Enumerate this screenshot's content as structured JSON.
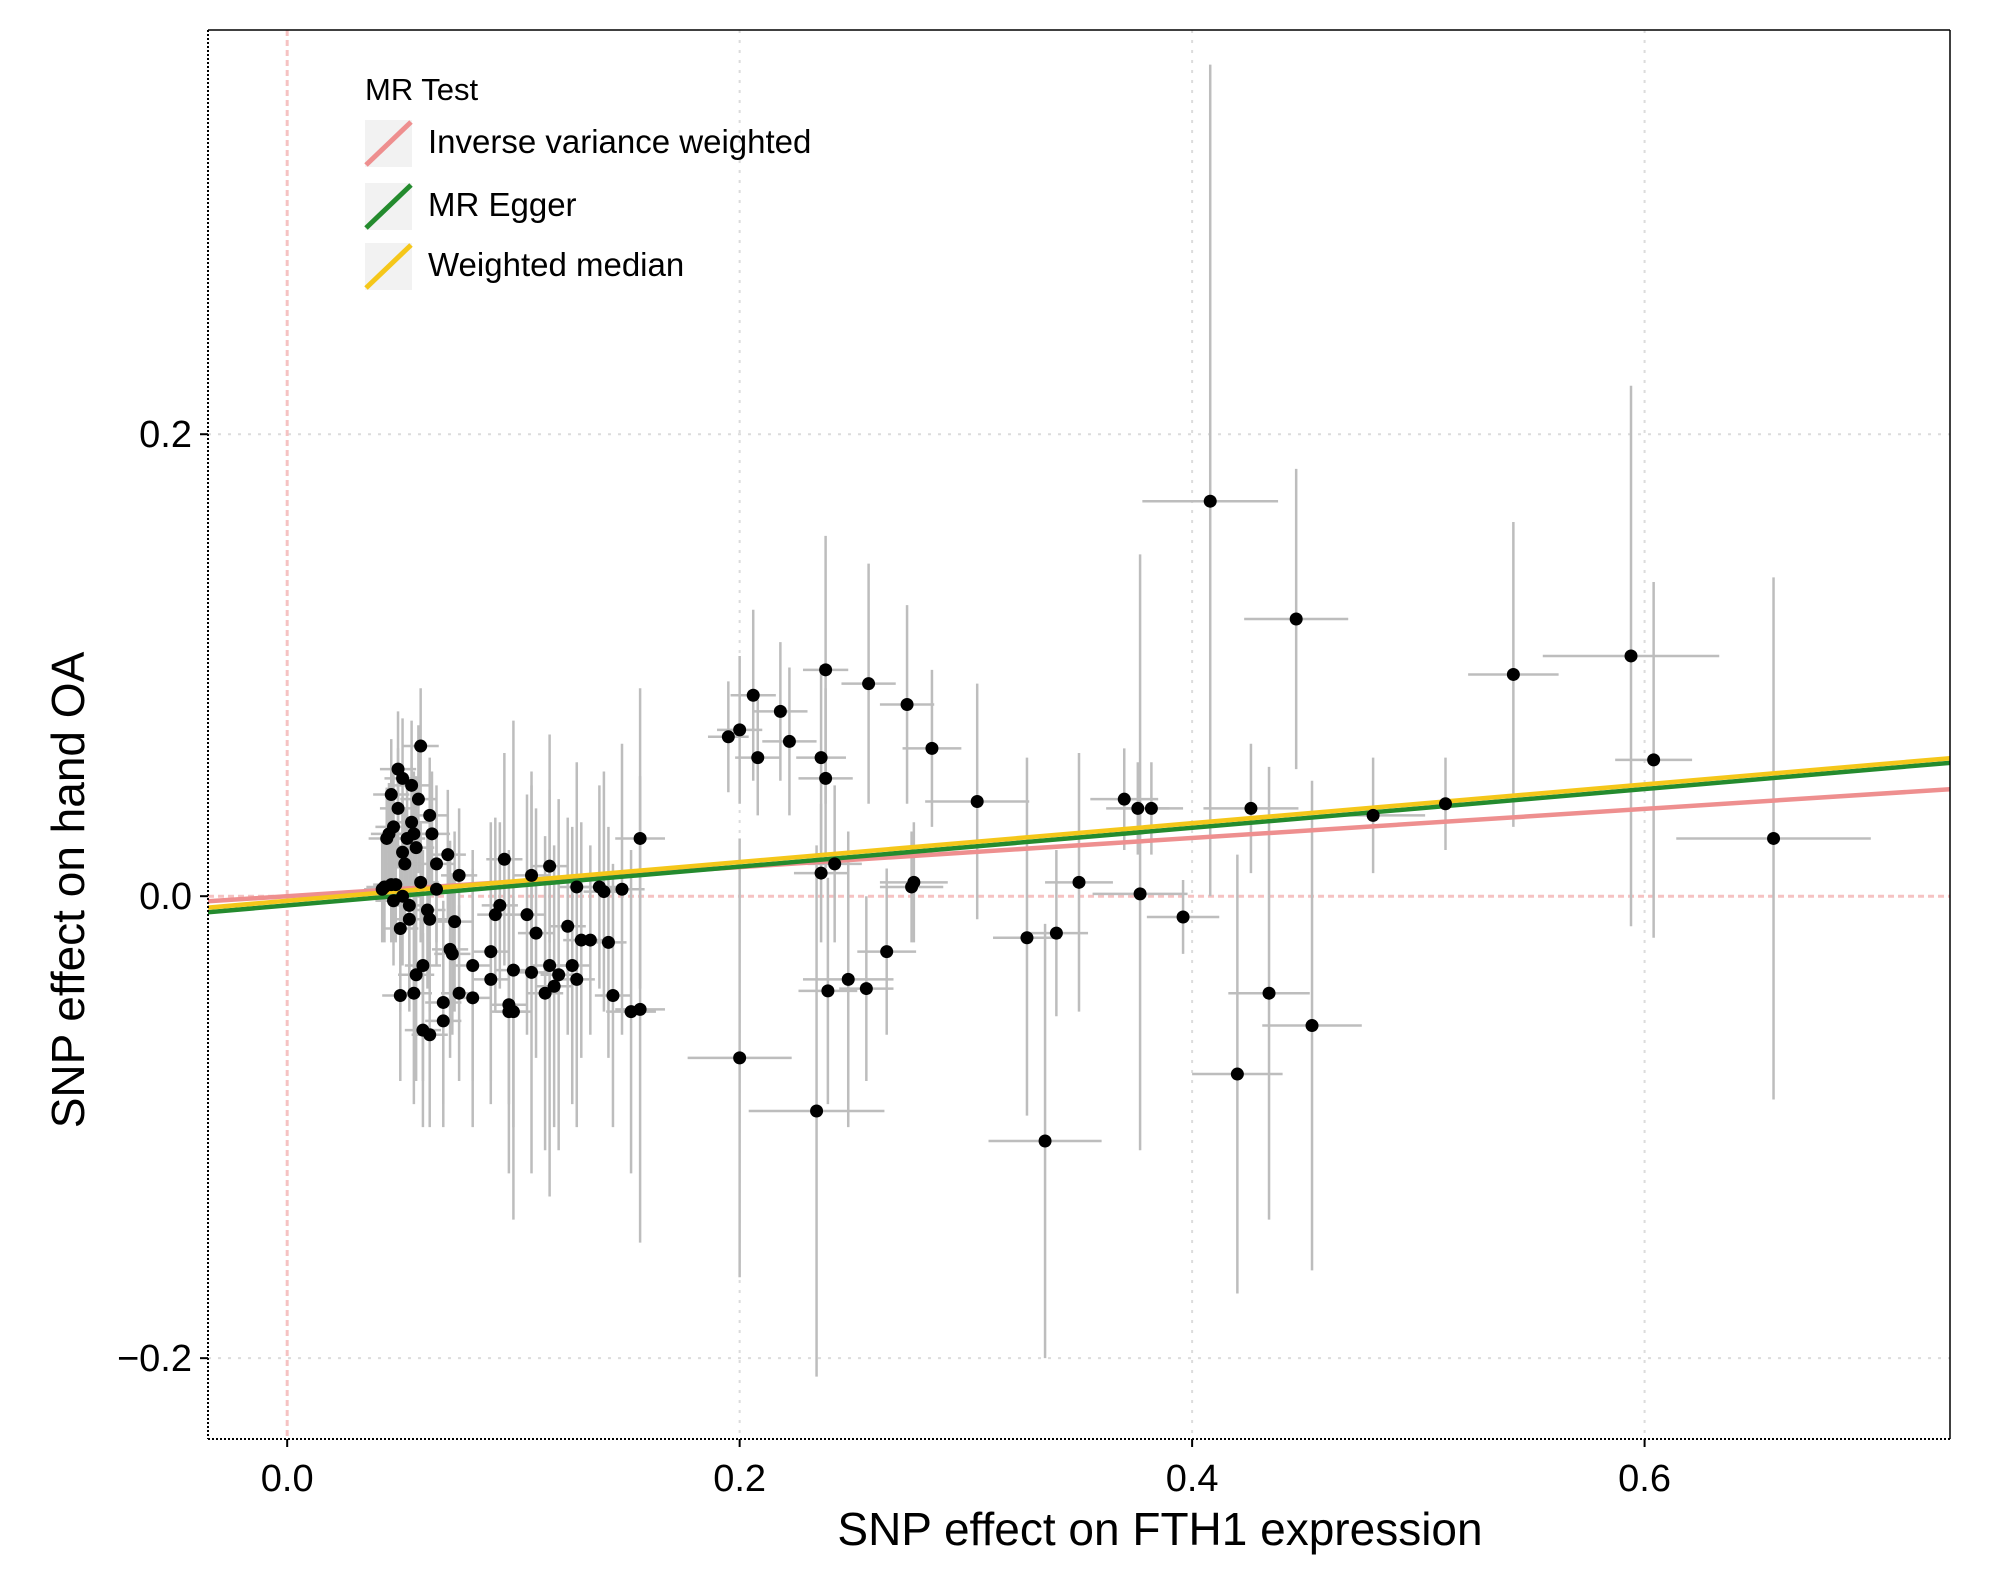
{
  "chart_data": {
    "type": "scatter",
    "title": "",
    "xlabel": "SNP effect on FTH1 expression",
    "ylabel": "SNP effect on hand OA",
    "xlim": [
      -0.035,
      0.735
    ],
    "ylim": [
      -0.235,
      0.375
    ],
    "x_ticks": [
      0.0,
      0.2,
      0.4,
      0.6
    ],
    "x_tick_labels": [
      "0.0",
      "0.2",
      "0.4",
      "0.6"
    ],
    "y_ticks": [
      -0.2,
      0.0,
      0.2
    ],
    "y_tick_labels": [
      "−0.2",
      "0.0",
      "0.2"
    ],
    "grid": true,
    "reference_lines": {
      "x": 0,
      "y": 0,
      "color": "#f6c2c2"
    },
    "errorbar_color": "#bdbdbd",
    "point_color": "#000000",
    "legend": {
      "title": "MR Test",
      "placement": "top-left",
      "entries": [
        {
          "label": "Inverse variance weighted",
          "color": "#ee8f8f"
        },
        {
          "label": "MR Egger",
          "color": "#248b2e"
        },
        {
          "label": "Weighted median",
          "color": "#f5c71a"
        }
      ]
    },
    "lines": [
      {
        "name": "Inverse variance weighted",
        "color": "#ee8f8f",
        "intercept": 0.0,
        "slope": 0.063
      },
      {
        "name": "MR Egger",
        "color": "#248b2e",
        "intercept": -0.004,
        "slope": 0.084
      },
      {
        "name": "Weighted median",
        "color": "#f5c71a",
        "intercept": -0.002,
        "slope": 0.084
      }
    ],
    "points": [
      {
        "x": 0.408,
        "y": 0.171,
        "xlo": 0.378,
        "xhi": 0.438,
        "ylo": 0.0,
        "yhi": 0.36
      },
      {
        "x": 0.446,
        "y": 0.12,
        "xlo": 0.423,
        "xhi": 0.469,
        "ylo": 0.055,
        "yhi": 0.185
      },
      {
        "x": 0.594,
        "y": 0.104,
        "xlo": 0.555,
        "xhi": 0.633,
        "ylo": -0.013,
        "yhi": 0.221
      },
      {
        "x": 0.542,
        "y": 0.096,
        "xlo": 0.522,
        "xhi": 0.562,
        "ylo": 0.03,
        "yhi": 0.162
      },
      {
        "x": 0.604,
        "y": 0.059,
        "xlo": 0.587,
        "xhi": 0.621,
        "ylo": -0.018,
        "yhi": 0.136
      },
      {
        "x": 0.657,
        "y": 0.025,
        "xlo": 0.614,
        "xhi": 0.7,
        "ylo": -0.088,
        "yhi": 0.138
      },
      {
        "x": 0.48,
        "y": 0.035,
        "xlo": 0.457,
        "xhi": 0.503,
        "ylo": 0.01,
        "yhi": 0.06
      },
      {
        "x": 0.512,
        "y": 0.04,
        "xlo": 0.497,
        "xhi": 0.527,
        "ylo": 0.02,
        "yhi": 0.06
      },
      {
        "x": 0.426,
        "y": 0.038,
        "xlo": 0.405,
        "xhi": 0.447,
        "ylo": 0.01,
        "yhi": 0.066
      },
      {
        "x": 0.37,
        "y": 0.042,
        "xlo": 0.355,
        "xhi": 0.385,
        "ylo": 0.02,
        "yhi": 0.064
      },
      {
        "x": 0.376,
        "y": 0.038,
        "xlo": 0.362,
        "xhi": 0.39,
        "ylo": 0.018,
        "yhi": 0.058
      },
      {
        "x": 0.382,
        "y": 0.038,
        "xlo": 0.368,
        "xhi": 0.396,
        "ylo": 0.018,
        "yhi": 0.058
      },
      {
        "x": 0.377,
        "y": 0.001,
        "xlo": 0.356,
        "xhi": 0.398,
        "ylo": -0.11,
        "yhi": 0.148
      },
      {
        "x": 0.396,
        "y": -0.009,
        "xlo": 0.38,
        "xhi": 0.412,
        "ylo": -0.025,
        "yhi": 0.007
      },
      {
        "x": 0.434,
        "y": -0.042,
        "xlo": 0.416,
        "xhi": 0.452,
        "ylo": -0.14,
        "yhi": 0.056
      },
      {
        "x": 0.453,
        "y": -0.056,
        "xlo": 0.431,
        "xhi": 0.475,
        "ylo": -0.162,
        "yhi": 0.05
      },
      {
        "x": 0.42,
        "y": -0.077,
        "xlo": 0.4,
        "xhi": 0.44,
        "ylo": -0.172,
        "yhi": 0.018
      },
      {
        "x": 0.335,
        "y": -0.106,
        "xlo": 0.31,
        "xhi": 0.36,
        "ylo": -0.2,
        "yhi": -0.012
      },
      {
        "x": 0.35,
        "y": 0.006,
        "xlo": 0.335,
        "xhi": 0.365,
        "ylo": -0.05,
        "yhi": 0.062
      },
      {
        "x": 0.327,
        "y": -0.018,
        "xlo": 0.312,
        "xhi": 0.342,
        "ylo": -0.095,
        "yhi": 0.06
      },
      {
        "x": 0.34,
        "y": -0.016,
        "xlo": 0.326,
        "xhi": 0.354,
        "ylo": -0.052,
        "yhi": 0.02
      },
      {
        "x": 0.305,
        "y": 0.041,
        "xlo": 0.282,
        "xhi": 0.328,
        "ylo": -0.01,
        "yhi": 0.092
      },
      {
        "x": 0.285,
        "y": 0.064,
        "xlo": 0.272,
        "xhi": 0.298,
        "ylo": 0.03,
        "yhi": 0.098
      },
      {
        "x": 0.274,
        "y": 0.083,
        "xlo": 0.262,
        "xhi": 0.286,
        "ylo": 0.04,
        "yhi": 0.126
      },
      {
        "x": 0.276,
        "y": 0.004,
        "xlo": 0.262,
        "xhi": 0.29,
        "ylo": -0.02,
        "yhi": 0.028
      },
      {
        "x": 0.277,
        "y": 0.006,
        "xlo": 0.262,
        "xhi": 0.292,
        "ylo": -0.02,
        "yhi": 0.032
      },
      {
        "x": 0.257,
        "y": 0.092,
        "xlo": 0.245,
        "xhi": 0.269,
        "ylo": 0.04,
        "yhi": 0.144
      },
      {
        "x": 0.238,
        "y": 0.098,
        "xlo": 0.228,
        "xhi": 0.248,
        "ylo": 0.04,
        "yhi": 0.156
      },
      {
        "x": 0.236,
        "y": 0.06,
        "xlo": 0.225,
        "xhi": 0.247,
        "ylo": 0.02,
        "yhi": 0.1
      },
      {
        "x": 0.238,
        "y": 0.051,
        "xlo": 0.226,
        "xhi": 0.25,
        "ylo": 0.012,
        "yhi": 0.09
      },
      {
        "x": 0.218,
        "y": 0.08,
        "xlo": 0.206,
        "xhi": 0.23,
        "ylo": 0.05,
        "yhi": 0.11
      },
      {
        "x": 0.222,
        "y": 0.067,
        "xlo": 0.21,
        "xhi": 0.234,
        "ylo": 0.035,
        "yhi": 0.099
      },
      {
        "x": 0.206,
        "y": 0.087,
        "xlo": 0.196,
        "xhi": 0.216,
        "ylo": 0.05,
        "yhi": 0.124
      },
      {
        "x": 0.2,
        "y": 0.072,
        "xlo": 0.19,
        "xhi": 0.21,
        "ylo": 0.04,
        "yhi": 0.104
      },
      {
        "x": 0.195,
        "y": 0.069,
        "xlo": 0.186,
        "xhi": 0.204,
        "ylo": 0.045,
        "yhi": 0.093
      },
      {
        "x": 0.208,
        "y": 0.06,
        "xlo": 0.198,
        "xhi": 0.218,
        "ylo": 0.035,
        "yhi": 0.085
      },
      {
        "x": 0.242,
        "y": 0.014,
        "xlo": 0.23,
        "xhi": 0.254,
        "ylo": -0.02,
        "yhi": 0.048
      },
      {
        "x": 0.236,
        "y": 0.01,
        "xlo": 0.224,
        "xhi": 0.248,
        "ylo": -0.02,
        "yhi": 0.04
      },
      {
        "x": 0.265,
        "y": -0.024,
        "xlo": 0.252,
        "xhi": 0.278,
        "ylo": -0.06,
        "yhi": 0.012
      },
      {
        "x": 0.248,
        "y": -0.036,
        "xlo": 0.228,
        "xhi": 0.268,
        "ylo": -0.1,
        "yhi": 0.028
      },
      {
        "x": 0.239,
        "y": -0.041,
        "xlo": 0.226,
        "xhi": 0.252,
        "ylo": -0.09,
        "yhi": 0.008
      },
      {
        "x": 0.256,
        "y": -0.04,
        "xlo": 0.244,
        "xhi": 0.268,
        "ylo": -0.08,
        "yhi": 0.0
      },
      {
        "x": 0.2,
        "y": -0.07,
        "xlo": 0.177,
        "xhi": 0.223,
        "ylo": -0.165,
        "yhi": 0.025
      },
      {
        "x": 0.234,
        "y": -0.093,
        "xlo": 0.204,
        "xhi": 0.264,
        "ylo": -0.208,
        "yhi": 0.022
      },
      {
        "x": 0.156,
        "y": 0.025,
        "xlo": 0.145,
        "xhi": 0.167,
        "ylo": -0.04,
        "yhi": 0.09
      },
      {
        "x": 0.148,
        "y": 0.003,
        "xlo": 0.138,
        "xhi": 0.158,
        "ylo": -0.06,
        "yhi": 0.066
      },
      {
        "x": 0.152,
        "y": -0.05,
        "xlo": 0.141,
        "xhi": 0.163,
        "ylo": -0.12,
        "yhi": 0.02
      },
      {
        "x": 0.156,
        "y": -0.049,
        "xlo": 0.145,
        "xhi": 0.167,
        "ylo": -0.15,
        "yhi": 0.052
      },
      {
        "x": 0.14,
        "y": 0.002,
        "xlo": 0.131,
        "xhi": 0.149,
        "ylo": -0.05,
        "yhi": 0.054
      },
      {
        "x": 0.138,
        "y": 0.004,
        "xlo": 0.13,
        "xhi": 0.146,
        "ylo": -0.04,
        "yhi": 0.048
      },
      {
        "x": 0.142,
        "y": -0.02,
        "xlo": 0.134,
        "xhi": 0.15,
        "ylo": -0.07,
        "yhi": 0.03
      },
      {
        "x": 0.144,
        "y": -0.043,
        "xlo": 0.136,
        "xhi": 0.152,
        "ylo": -0.1,
        "yhi": 0.014
      },
      {
        "x": 0.128,
        "y": 0.004,
        "xlo": 0.12,
        "xhi": 0.136,
        "ylo": -0.05,
        "yhi": 0.058
      },
      {
        "x": 0.13,
        "y": -0.019,
        "xlo": 0.122,
        "xhi": 0.138,
        "ylo": -0.07,
        "yhi": 0.032
      },
      {
        "x": 0.134,
        "y": -0.019,
        "xlo": 0.126,
        "xhi": 0.142,
        "ylo": -0.06,
        "yhi": 0.022
      },
      {
        "x": 0.124,
        "y": -0.013,
        "xlo": 0.116,
        "xhi": 0.132,
        "ylo": -0.06,
        "yhi": 0.034
      },
      {
        "x": 0.126,
        "y": -0.03,
        "xlo": 0.118,
        "xhi": 0.134,
        "ylo": -0.09,
        "yhi": 0.03
      },
      {
        "x": 0.128,
        "y": -0.036,
        "xlo": 0.12,
        "xhi": 0.136,
        "ylo": -0.1,
        "yhi": 0.028
      },
      {
        "x": 0.12,
        "y": -0.034,
        "xlo": 0.112,
        "xhi": 0.128,
        "ylo": -0.11,
        "yhi": 0.042
      },
      {
        "x": 0.116,
        "y": -0.03,
        "xlo": 0.108,
        "xhi": 0.124,
        "ylo": -0.13,
        "yhi": 0.07
      },
      {
        "x": 0.118,
        "y": -0.039,
        "xlo": 0.11,
        "xhi": 0.126,
        "ylo": -0.1,
        "yhi": 0.022
      },
      {
        "x": 0.114,
        "y": -0.042,
        "xlo": 0.106,
        "xhi": 0.122,
        "ylo": -0.11,
        "yhi": 0.026
      },
      {
        "x": 0.11,
        "y": -0.016,
        "xlo": 0.102,
        "xhi": 0.118,
        "ylo": -0.07,
        "yhi": 0.038
      },
      {
        "x": 0.108,
        "y": 0.009,
        "xlo": 0.1,
        "xhi": 0.116,
        "ylo": -0.03,
        "yhi": 0.048
      },
      {
        "x": 0.116,
        "y": 0.013,
        "xlo": 0.108,
        "xhi": 0.124,
        "ylo": -0.02,
        "yhi": 0.046
      },
      {
        "x": 0.106,
        "y": -0.008,
        "xlo": 0.098,
        "xhi": 0.114,
        "ylo": -0.06,
        "yhi": 0.044
      },
      {
        "x": 0.108,
        "y": -0.033,
        "xlo": 0.1,
        "xhi": 0.116,
        "ylo": -0.12,
        "yhi": 0.054
      },
      {
        "x": 0.1,
        "y": -0.032,
        "xlo": 0.092,
        "xhi": 0.108,
        "ylo": -0.14,
        "yhi": 0.076
      },
      {
        "x": 0.098,
        "y": -0.05,
        "xlo": 0.09,
        "xhi": 0.106,
        "ylo": -0.12,
        "yhi": 0.02
      },
      {
        "x": 0.1,
        "y": -0.05,
        "xlo": 0.092,
        "xhi": 0.108,
        "ylo": -0.1,
        "yhi": 0.0
      },
      {
        "x": 0.098,
        "y": -0.047,
        "xlo": 0.09,
        "xhi": 0.106,
        "ylo": -0.09,
        "yhi": -0.004
      },
      {
        "x": 0.096,
        "y": 0.016,
        "xlo": 0.088,
        "xhi": 0.104,
        "ylo": -0.03,
        "yhi": 0.062
      },
      {
        "x": 0.094,
        "y": -0.004,
        "xlo": 0.086,
        "xhi": 0.102,
        "ylo": -0.04,
        "yhi": 0.032
      },
      {
        "x": 0.092,
        "y": -0.008,
        "xlo": 0.084,
        "xhi": 0.1,
        "ylo": -0.05,
        "yhi": 0.034
      },
      {
        "x": 0.09,
        "y": -0.036,
        "xlo": 0.082,
        "xhi": 0.098,
        "ylo": -0.09,
        "yhi": 0.018
      },
      {
        "x": 0.09,
        "y": -0.024,
        "xlo": 0.082,
        "xhi": 0.098,
        "ylo": -0.08,
        "yhi": 0.032
      },
      {
        "x": 0.082,
        "y": -0.03,
        "xlo": 0.074,
        "xhi": 0.09,
        "ylo": -0.08,
        "yhi": 0.02
      },
      {
        "x": 0.082,
        "y": -0.044,
        "xlo": 0.074,
        "xhi": 0.09,
        "ylo": -0.1,
        "yhi": 0.012
      },
      {
        "x": 0.076,
        "y": -0.042,
        "xlo": 0.068,
        "xhi": 0.084,
        "ylo": -0.08,
        "yhi": -0.004
      },
      {
        "x": 0.076,
        "y": 0.009,
        "xlo": 0.068,
        "xhi": 0.084,
        "ylo": -0.02,
        "yhi": 0.038
      },
      {
        "x": 0.073,
        "y": -0.025,
        "xlo": 0.065,
        "xhi": 0.081,
        "ylo": -0.06,
        "yhi": 0.01
      },
      {
        "x": 0.074,
        "y": -0.011,
        "xlo": 0.066,
        "xhi": 0.082,
        "ylo": -0.05,
        "yhi": 0.028
      },
      {
        "x": 0.072,
        "y": -0.023,
        "xlo": 0.064,
        "xhi": 0.08,
        "ylo": -0.07,
        "yhi": 0.024
      },
      {
        "x": 0.071,
        "y": 0.018,
        "xlo": 0.063,
        "xhi": 0.079,
        "ylo": -0.01,
        "yhi": 0.046
      },
      {
        "x": 0.069,
        "y": -0.046,
        "xlo": 0.061,
        "xhi": 0.077,
        "ylo": -0.09,
        "yhi": -0.002
      },
      {
        "x": 0.069,
        "y": -0.054,
        "xlo": 0.061,
        "xhi": 0.077,
        "ylo": -0.1,
        "yhi": -0.008
      },
      {
        "x": 0.066,
        "y": 0.014,
        "xlo": 0.058,
        "xhi": 0.074,
        "ylo": -0.02,
        "yhi": 0.048
      },
      {
        "x": 0.066,
        "y": 0.003,
        "xlo": 0.058,
        "xhi": 0.074,
        "ylo": -0.03,
        "yhi": 0.036
      },
      {
        "x": 0.063,
        "y": 0.035,
        "xlo": 0.055,
        "xhi": 0.071,
        "ylo": 0.01,
        "yhi": 0.06
      },
      {
        "x": 0.064,
        "y": 0.027,
        "xlo": 0.056,
        "xhi": 0.072,
        "ylo": 0.0,
        "yhi": 0.054
      },
      {
        "x": 0.063,
        "y": -0.01,
        "xlo": 0.055,
        "xhi": 0.071,
        "ylo": -0.05,
        "yhi": 0.03
      },
      {
        "x": 0.062,
        "y": -0.006,
        "xlo": 0.054,
        "xhi": 0.07,
        "ylo": -0.04,
        "yhi": 0.028
      },
      {
        "x": 0.063,
        "y": -0.06,
        "xlo": 0.055,
        "xhi": 0.071,
        "ylo": -0.1,
        "yhi": -0.02
      },
      {
        "x": 0.06,
        "y": -0.058,
        "xlo": 0.052,
        "xhi": 0.068,
        "ylo": -0.1,
        "yhi": -0.016
      },
      {
        "x": 0.06,
        "y": -0.03,
        "xlo": 0.052,
        "xhi": 0.068,
        "ylo": -0.08,
        "yhi": 0.02
      },
      {
        "x": 0.059,
        "y": 0.065,
        "xlo": 0.051,
        "xhi": 0.067,
        "ylo": 0.04,
        "yhi": 0.09
      },
      {
        "x": 0.059,
        "y": 0.006,
        "xlo": 0.051,
        "xhi": 0.067,
        "ylo": -0.02,
        "yhi": 0.032
      },
      {
        "x": 0.058,
        "y": 0.042,
        "xlo": 0.05,
        "xhi": 0.066,
        "ylo": 0.01,
        "yhi": 0.074
      },
      {
        "x": 0.057,
        "y": 0.021,
        "xlo": 0.049,
        "xhi": 0.065,
        "ylo": -0.01,
        "yhi": 0.052
      },
      {
        "x": 0.057,
        "y": -0.034,
        "xlo": 0.049,
        "xhi": 0.065,
        "ylo": -0.08,
        "yhi": 0.012
      },
      {
        "x": 0.056,
        "y": -0.042,
        "xlo": 0.048,
        "xhi": 0.064,
        "ylo": -0.09,
        "yhi": 0.006
      },
      {
        "x": 0.056,
        "y": 0.027,
        "xlo": 0.048,
        "xhi": 0.064,
        "ylo": 0.0,
        "yhi": 0.054
      },
      {
        "x": 0.055,
        "y": 0.032,
        "xlo": 0.047,
        "xhi": 0.063,
        "ylo": 0.005,
        "yhi": 0.059
      },
      {
        "x": 0.055,
        "y": 0.048,
        "xlo": 0.047,
        "xhi": 0.063,
        "ylo": 0.02,
        "yhi": 0.076
      },
      {
        "x": 0.054,
        "y": -0.004,
        "xlo": 0.046,
        "xhi": 0.062,
        "ylo": -0.04,
        "yhi": 0.032
      },
      {
        "x": 0.054,
        "y": -0.01,
        "xlo": 0.046,
        "xhi": 0.062,
        "ylo": -0.05,
        "yhi": 0.03
      },
      {
        "x": 0.053,
        "y": 0.025,
        "xlo": 0.045,
        "xhi": 0.061,
        "ylo": 0.0,
        "yhi": 0.05
      },
      {
        "x": 0.052,
        "y": 0.014,
        "xlo": 0.044,
        "xhi": 0.06,
        "ylo": -0.01,
        "yhi": 0.038
      },
      {
        "x": 0.051,
        "y": 0.051,
        "xlo": 0.043,
        "xhi": 0.059,
        "ylo": 0.025,
        "yhi": 0.077
      },
      {
        "x": 0.051,
        "y": 0.019,
        "xlo": 0.043,
        "xhi": 0.059,
        "ylo": -0.005,
        "yhi": 0.043
      },
      {
        "x": 0.051,
        "y": 0.0,
        "xlo": 0.043,
        "xhi": 0.059,
        "ylo": -0.03,
        "yhi": 0.03
      },
      {
        "x": 0.05,
        "y": -0.014,
        "xlo": 0.042,
        "xhi": 0.058,
        "ylo": -0.05,
        "yhi": 0.022
      },
      {
        "x": 0.05,
        "y": -0.043,
        "xlo": 0.042,
        "xhi": 0.058,
        "ylo": -0.08,
        "yhi": -0.006
      },
      {
        "x": 0.049,
        "y": 0.055,
        "xlo": 0.041,
        "xhi": 0.057,
        "ylo": 0.03,
        "yhi": 0.08
      },
      {
        "x": 0.049,
        "y": 0.038,
        "xlo": 0.041,
        "xhi": 0.057,
        "ylo": 0.012,
        "yhi": 0.064
      },
      {
        "x": 0.048,
        "y": 0.005,
        "xlo": 0.04,
        "xhi": 0.056,
        "ylo": -0.02,
        "yhi": 0.03
      },
      {
        "x": 0.047,
        "y": -0.002,
        "xlo": 0.039,
        "xhi": 0.055,
        "ylo": -0.03,
        "yhi": 0.026
      },
      {
        "x": 0.047,
        "y": 0.03,
        "xlo": 0.039,
        "xhi": 0.055,
        "ylo": 0.005,
        "yhi": 0.055
      },
      {
        "x": 0.046,
        "y": 0.044,
        "xlo": 0.038,
        "xhi": 0.054,
        "ylo": 0.02,
        "yhi": 0.068
      },
      {
        "x": 0.046,
        "y": 0.005,
        "xlo": 0.038,
        "xhi": 0.054,
        "ylo": -0.02,
        "yhi": 0.03
      },
      {
        "x": 0.045,
        "y": 0.027,
        "xlo": 0.037,
        "xhi": 0.053,
        "ylo": 0.005,
        "yhi": 0.049
      },
      {
        "x": 0.044,
        "y": 0.025,
        "xlo": 0.036,
        "xhi": 0.052,
        "ylo": 0.003,
        "yhi": 0.047
      },
      {
        "x": 0.043,
        "y": 0.004,
        "xlo": 0.035,
        "xhi": 0.051,
        "ylo": -0.02,
        "yhi": 0.028
      },
      {
        "x": 0.042,
        "y": 0.003,
        "xlo": 0.034,
        "xhi": 0.05,
        "ylo": -0.02,
        "yhi": 0.026
      }
    ]
  }
}
